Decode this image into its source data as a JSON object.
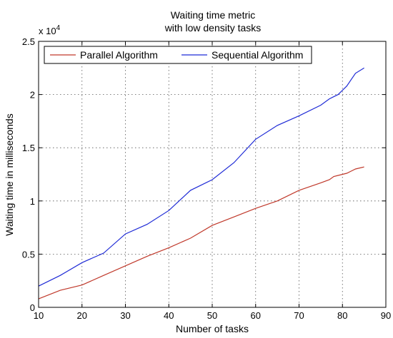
{
  "chart_data": {
    "type": "line",
    "title_lines": [
      "Waiting time metric",
      "with low density tasks"
    ],
    "xlabel": "Number of tasks",
    "ylabel": "Waiting time in milliseconds",
    "y_exponent_label": "x 10",
    "y_exponent_power": "4",
    "xlim": [
      10,
      90
    ],
    "ylim": [
      0,
      25000
    ],
    "x_ticks": [
      10,
      20,
      30,
      40,
      50,
      60,
      70,
      80,
      90
    ],
    "x_tick_labels": [
      "10",
      "20",
      "30",
      "40",
      "50",
      "60",
      "70",
      "80",
      "90"
    ],
    "y_ticks": [
      0,
      5000,
      10000,
      15000,
      20000,
      25000
    ],
    "y_tick_labels": [
      "0",
      "0.5",
      "1",
      "1.5",
      "2",
      "2.5"
    ],
    "grid": true,
    "legend_position": "top-left",
    "series": [
      {
        "name": "Parallel Algorithm",
        "color": "#c0392b",
        "x": [
          10,
          15,
          20,
          25,
          30,
          35,
          40,
          45,
          50,
          55,
          60,
          65,
          70,
          75,
          77,
          78,
          79,
          80,
          81,
          82,
          83,
          85
        ],
        "y": [
          800,
          1600,
          2100,
          3000,
          3900,
          4800,
          5600,
          6500,
          7700,
          8500,
          9300,
          10000,
          11000,
          11700,
          12000,
          12300,
          12400,
          12500,
          12600,
          12800,
          13000,
          13200
        ]
      },
      {
        "name": "Sequential Algorithm",
        "color": "#1f2bd6",
        "x": [
          10,
          15,
          20,
          25,
          30,
          35,
          40,
          45,
          50,
          55,
          60,
          65,
          70,
          75,
          77,
          78,
          79,
          80,
          81,
          82,
          83,
          85
        ],
        "y": [
          2000,
          3000,
          4200,
          5100,
          6900,
          7800,
          9100,
          11000,
          12000,
          13600,
          15800,
          17100,
          18000,
          19000,
          19600,
          19800,
          20000,
          20400,
          20800,
          21400,
          22000,
          22500
        ]
      }
    ]
  }
}
